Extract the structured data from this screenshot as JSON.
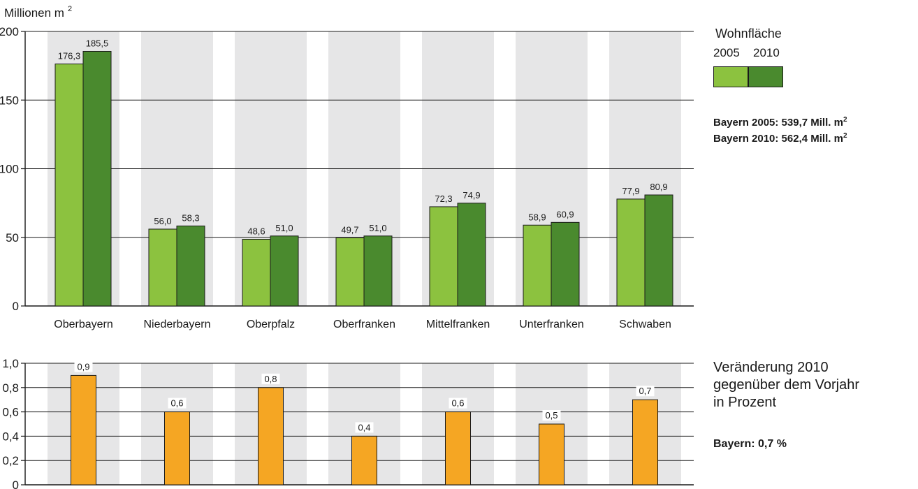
{
  "chart_data": [
    {
      "type": "bar",
      "ylabel": "Millionen m",
      "ylabel_sup": "2",
      "categories": [
        "Oberbayern",
        "Niederbayern",
        "Oberpfalz",
        "Oberfranken",
        "Mittelfranken",
        "Unterfranken",
        "Schwaben"
      ],
      "ylim": [
        0,
        200
      ],
      "yticks": [
        "0",
        "50",
        "100",
        "150",
        "200"
      ],
      "yticks_values": [
        0,
        50,
        100,
        150,
        200
      ],
      "grid": true,
      "legend_title": "Wohnfläche",
      "series": [
        {
          "name": "2005",
          "color": "#8cc23f",
          "values": [
            176.3,
            56.0,
            48.6,
            49.7,
            72.3,
            58.9,
            77.9
          ],
          "labels": [
            "176,3",
            "56,0",
            "48,6",
            "49,7",
            "72,3",
            "58,9",
            "77,9"
          ]
        },
        {
          "name": "2010",
          "color": "#4a8a2e",
          "values": [
            185.5,
            58.3,
            51.0,
            51.0,
            74.9,
            60.9,
            80.9
          ],
          "labels": [
            "185,5",
            "58,3",
            "51,0",
            "51,0",
            "74,9",
            "60,9",
            "80,9"
          ]
        }
      ],
      "notes": [
        "Bayern 2005: 539,7 Mill. m",
        "Bayern 2010: 562,4 Mill. m"
      ],
      "notes_sup": "2"
    },
    {
      "type": "bar",
      "categories": [
        "Oberbayern",
        "Niederbayern",
        "Oberpfalz",
        "Oberfranken",
        "Mittelfranken",
        "Unterfranken",
        "Schwaben"
      ],
      "ylim": [
        0,
        1.0
      ],
      "yticks": [
        "0",
        "0,2",
        "0,4",
        "0,6",
        "0,8",
        "1,0"
      ],
      "yticks_values": [
        0,
        0.2,
        0.4,
        0.6,
        0.8,
        1.0
      ],
      "grid": true,
      "series": [
        {
          "color": "#f5a623",
          "values": [
            0.9,
            0.6,
            0.8,
            0.4,
            0.6,
            0.5,
            0.7
          ],
          "labels": [
            "0,9",
            "0,6",
            "0,8",
            "0,4",
            "0,6",
            "0,5",
            "0,7"
          ]
        }
      ],
      "caption_lines": [
        "Veränderung 2010",
        "gegenüber dem Vorjahr",
        "in Prozent"
      ],
      "note": "Bayern: 0,7 %"
    }
  ],
  "colors": {
    "stripe": "#e6e6e7",
    "axis": "#1a1a1a"
  }
}
